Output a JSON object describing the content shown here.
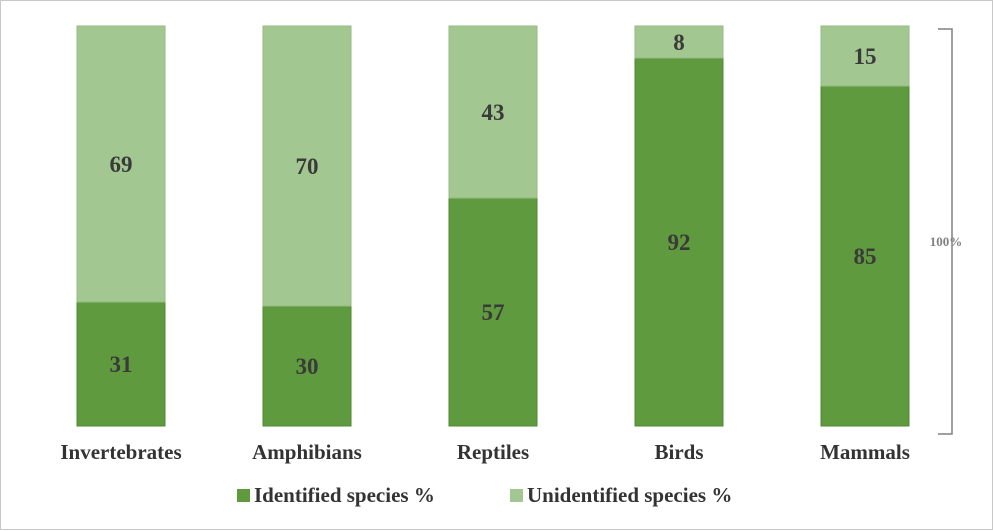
{
  "chart_data": {
    "type": "bar",
    "stacked": true,
    "normalized": "percent",
    "title": "",
    "xlabel": "",
    "ylabel": "",
    "ylim": [
      0,
      100
    ],
    "categories": [
      "Invertebrates",
      "Amphibians",
      "Reptiles",
      "Birds",
      "Mammals"
    ],
    "series": [
      {
        "name": "Identified species %",
        "values": [
          31,
          30,
          57,
          92,
          85
        ],
        "color": "#5f9a3e"
      },
      {
        "name": "Unidentified species %",
        "values": [
          69,
          70,
          43,
          8,
          15
        ],
        "color": "#a3c791"
      }
    ],
    "legend_position": "bottom",
    "annotation": {
      "text": "100%",
      "style": "right-bracket"
    },
    "grid": false
  }
}
